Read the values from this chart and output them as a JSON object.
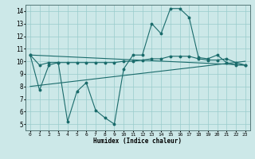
{
  "title": "",
  "xlabel": "Humidex (Indice chaleur)",
  "bg_color": "#cce8e8",
  "grid_color": "#99cccc",
  "line_color": "#1a6b6b",
  "xlim": [
    -0.5,
    23.5
  ],
  "ylim": [
    4.5,
    14.5
  ],
  "yticks": [
    5,
    6,
    7,
    8,
    9,
    10,
    11,
    12,
    13,
    14
  ],
  "xticks": [
    0,
    1,
    2,
    3,
    4,
    5,
    6,
    7,
    8,
    9,
    10,
    11,
    12,
    13,
    14,
    15,
    16,
    17,
    18,
    19,
    20,
    21,
    22,
    23
  ],
  "line1_x": [
    0,
    1,
    2,
    3,
    4,
    5,
    6,
    7,
    8,
    9,
    10,
    11,
    12,
    13,
    14,
    15,
    16,
    17,
    18,
    19,
    20,
    21,
    22,
    23
  ],
  "line1_y": [
    10.5,
    7.7,
    9.7,
    9.9,
    5.2,
    7.6,
    8.3,
    6.1,
    5.5,
    5.0,
    9.4,
    10.5,
    10.5,
    13.0,
    12.2,
    14.2,
    14.2,
    13.5,
    10.3,
    10.2,
    10.5,
    9.9,
    9.7,
    9.7
  ],
  "line2_x": [
    0,
    1,
    2,
    3,
    4,
    5,
    6,
    7,
    8,
    9,
    10,
    11,
    12,
    13,
    14,
    15,
    16,
    17,
    18,
    19,
    20,
    21,
    22,
    23
  ],
  "line2_y": [
    10.5,
    9.7,
    9.9,
    9.9,
    9.9,
    9.9,
    9.9,
    9.9,
    9.9,
    9.9,
    10.0,
    10.0,
    10.1,
    10.2,
    10.2,
    10.4,
    10.4,
    10.4,
    10.2,
    10.1,
    10.1,
    10.2,
    9.9,
    9.7
  ],
  "line3_x": [
    0,
    23
  ],
  "line3_y": [
    8.0,
    10.0
  ],
  "line4_x": [
    0,
    23
  ],
  "line4_y": [
    10.5,
    9.7
  ]
}
